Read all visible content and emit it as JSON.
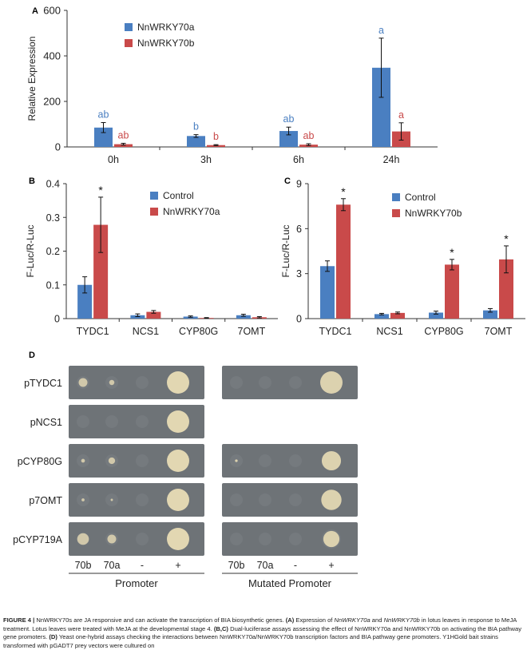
{
  "colors": {
    "series_a": "#4a7fc1",
    "series_b": "#c94a4a",
    "axis": "#333333",
    "plate": "#6e7377",
    "colony": "#e8dcb5",
    "letter_a": "#4a7fc1",
    "letter_b": "#c94a4a"
  },
  "chart_data": [
    {
      "panel": "A",
      "type": "bar",
      "ylabel": "Relative Expression",
      "ylim": [
        0,
        600
      ],
      "yticks": [
        "0",
        "200",
        "400",
        "600"
      ],
      "categories": [
        "0h",
        "3h",
        "6h",
        "24h"
      ],
      "series": [
        {
          "name": "NnWRKY70a",
          "values": [
            85,
            48,
            70,
            348
          ],
          "errors": [
            22,
            6,
            17,
            130
          ],
          "letters": [
            "ab",
            "b",
            "ab",
            "a"
          ]
        },
        {
          "name": "NnWRKY70b",
          "values": [
            12,
            8,
            10,
            68
          ],
          "errors": [
            4,
            2,
            4,
            38
          ],
          "letters": [
            "ab",
            "b",
            "ab",
            "a"
          ]
        }
      ]
    },
    {
      "panel": "B",
      "type": "bar",
      "ylabel": "F-Luc/R-Luc",
      "ylim": [
        0,
        0.4
      ],
      "yticks": [
        "0",
        "0.1",
        "0.2",
        "0.3",
        "0.4"
      ],
      "categories": [
        "TYDC1",
        "NCS1",
        "CYP80G",
        "7OMT"
      ],
      "series": [
        {
          "name": "Control",
          "values": [
            0.1,
            0.01,
            0.006,
            0.01
          ],
          "errors": [
            0.024,
            0.004,
            0.002,
            0.003
          ]
        },
        {
          "name": "NnWRKY70a",
          "values": [
            0.278,
            0.02,
            0.002,
            0.004
          ],
          "errors": [
            0.082,
            0.004,
            0.001,
            0.002
          ]
        }
      ],
      "significance": [
        "*",
        "",
        "",
        ""
      ]
    },
    {
      "panel": "C",
      "type": "bar",
      "ylabel": "F-Luc/R-Luc",
      "ylim": [
        0,
        9
      ],
      "yticks": [
        "0",
        "3",
        "6",
        "9"
      ],
      "categories": [
        "TYDC1",
        "NCS1",
        "CYP80G",
        "7OMT"
      ],
      "series": [
        {
          "name": "Control",
          "values": [
            3.5,
            0.3,
            0.4,
            0.55
          ],
          "errors": [
            0.35,
            0.05,
            0.1,
            0.12
          ]
        },
        {
          "name": "NnWRKY70b",
          "values": [
            7.6,
            0.38,
            3.6,
            3.95
          ],
          "errors": [
            0.4,
            0.06,
            0.35,
            0.9
          ]
        }
      ],
      "significance": [
        "*",
        "",
        "*",
        "*"
      ]
    }
  ],
  "panel_d": {
    "label": "D",
    "rows": [
      "pTYDC1",
      "pNCS1",
      "pCYP80G",
      "p7OMT",
      "pCYP719A"
    ],
    "column_labels": [
      "70b",
      "70a",
      "-",
      "+"
    ],
    "promoter_title": "Promoter",
    "mutated_title": "Mutated Promoter"
  },
  "caption": {
    "figure_label": "FIGURE 4 |",
    "part1": " NnWRKY70s are JA responsive and can activate the transcription of BIA biosynthetic genes. ",
    "bold_a": "(A)",
    "part2": " Expression of ",
    "italic_a": "NnWRKY70a",
    "part3": " and ",
    "italic_b": "NnWRKY70b",
    "part4": " in lotus leaves in response to MeJA treatment. Lotus leaves were treated with MeJA at the developmental stage 4. ",
    "bold_bc": "(B,C)",
    "part5": " Dual-luciferase assays assessing the effect of NnWRKY70a and NnWRKY70b on activating the BIA pathway gene promoters. ",
    "bold_d": "(D)",
    "part6": " Yeast one-hybrid assays checking the interactions between NnWRKY70a/NnWRKY70b transcription factors and BIA pathway gene promoters. Y1HGold bait strains transformed with pGADT7 prey vectors were cultured on"
  }
}
